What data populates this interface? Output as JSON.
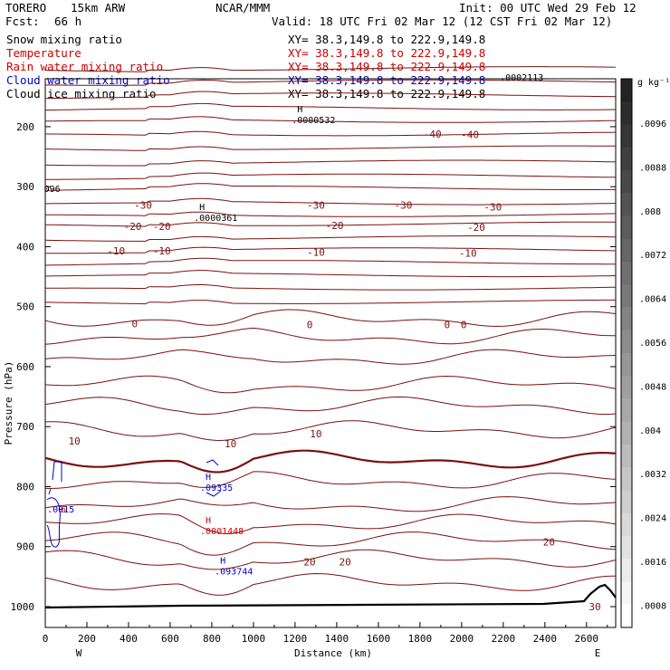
{
  "header": {
    "model": "TORERO",
    "resolution": "15km ARW",
    "org": "NCAR/MMM",
    "init": "Init: 00 UTC Wed 29 Feb 12",
    "fcst_label": "Fcst:",
    "fcst_value": "66 h",
    "valid": "Valid: 18 UTC Fri 02 Mar 12 (12 CST Fri 02 Mar 12)"
  },
  "fields": [
    {
      "name": "Snow mixing ratio",
      "xy": "XY=  38.3,149.8 to 222.9,149.8",
      "color": "#000000"
    },
    {
      "name": "Temperature",
      "xy": "XY=  38.3,149.8 to 222.9,149.8",
      "color": "#cc0000"
    },
    {
      "name": "Rain water mixing ratio",
      "xy": "XY=  38.3,149.8 to 222.9,149.8",
      "color": "#cc0000"
    },
    {
      "name": "Cloud water mixing ratio",
      "xy": "XY=  38.3,149.8 to 222.9,149.8",
      "color": "#0000cc"
    },
    {
      "name": "Cloud ice mixing ratio",
      "xy": "XY=  38.3,149.8 to 222.9,149.8",
      "color": "#000000"
    }
  ],
  "chart_data": {
    "type": "contour-cross-section",
    "xlabel": "Distance (km)",
    "ylabel": "Pressure (hPa)",
    "xlim": [
      0,
      2740
    ],
    "ylim": [
      1050,
      100
    ],
    "x_ticks": [
      0,
      200,
      400,
      600,
      800,
      1000,
      1200,
      1400,
      1600,
      1800,
      2000,
      2200,
      2400,
      2600
    ],
    "y_ticks": [
      200,
      300,
      400,
      500,
      600,
      700,
      800,
      900,
      1000
    ],
    "y_tick_labels": [
      "200",
      "300",
      "400",
      "500",
      "600",
      "700",
      "800",
      "900",
      "1000"
    ],
    "x_tick_labels": [
      "0",
      "200",
      "400",
      "600",
      "800",
      "1000",
      "1200",
      "1400",
      "1600",
      "1800",
      "2000",
      "2200",
      "2400",
      "2600"
    ],
    "ends": {
      "left": "W",
      "right": "E"
    },
    "temperature_contours": [
      {
        "value": -50,
        "pressure": 106
      },
      {
        "value": -48,
        "pressure": 128
      },
      {
        "value": -46,
        "pressure": 150
      },
      {
        "value": -44,
        "pressure": 172
      },
      {
        "value": -42,
        "pressure": 193
      },
      {
        "value": -40,
        "pressure": 215
      },
      {
        "value": -38,
        "pressure": 238
      },
      {
        "value": -36,
        "pressure": 262
      },
      {
        "value": -34,
        "pressure": 285
      },
      {
        "value": -32,
        "pressure": 305
      },
      {
        "value": -30,
        "pressure": 330
      },
      {
        "value": -28,
        "pressure": 350
      },
      {
        "value": -26,
        "pressure": 365
      },
      {
        "value": -24,
        "pressure": 388
      },
      {
        "value": -22,
        "pressure": 408
      },
      {
        "value": -20,
        "pressure": 429
      },
      {
        "value": -18,
        "pressure": 450
      },
      {
        "value": -16,
        "pressure": 472
      },
      {
        "value": -14,
        "pressure": 495
      },
      {
        "value": -12,
        "pressure": 520
      },
      {
        "value": -10,
        "pressure": 550
      },
      {
        "value": -8,
        "pressure": 585
      },
      {
        "value": -6,
        "pressure": 630
      },
      {
        "value": -4,
        "pressure": 665
      },
      {
        "value": -2,
        "pressure": 705
      },
      {
        "value": 0,
        "pressure": 755
      },
      {
        "value": 2,
        "pressure": 790
      },
      {
        "value": 4,
        "pressure": 830
      },
      {
        "value": 6,
        "pressure": 860
      },
      {
        "value": 8,
        "pressure": 890
      },
      {
        "value": 10,
        "pressure": 920
      },
      {
        "value": 12,
        "pressure": 960
      }
    ],
    "contour_labels": [
      {
        "text": "-40",
        "x": 1860,
        "p": 212
      },
      {
        "text": "-40",
        "x": 2040,
        "p": 213
      },
      {
        "text": "-30",
        "x": 470,
        "p": 331
      },
      {
        "text": "-30",
        "x": 1300,
        "p": 331
      },
      {
        "text": "-30",
        "x": 1720,
        "p": 331
      },
      {
        "text": "-30",
        "x": 2150,
        "p": 334
      },
      {
        "text": "-20",
        "x": 420,
        "p": 366
      },
      {
        "text": "-20",
        "x": 560,
        "p": 366
      },
      {
        "text": "-20",
        "x": 1390,
        "p": 365
      },
      {
        "text": "-20",
        "x": 2070,
        "p": 368
      },
      {
        "text": "-10",
        "x": 340,
        "p": 407
      },
      {
        "text": "-10",
        "x": 560,
        "p": 407
      },
      {
        "text": "-10",
        "x": 1300,
        "p": 409
      },
      {
        "text": "-10",
        "x": 2030,
        "p": 411
      },
      {
        "text": "0",
        "x": 430,
        "p": 528
      },
      {
        "text": "0",
        "x": 1270,
        "p": 530
      },
      {
        "text": "0",
        "x": 1930,
        "p": 530
      },
      {
        "text": "0",
        "x": 2010,
        "p": 530
      },
      {
        "text": "10",
        "x": 140,
        "p": 724
      },
      {
        "text": "10",
        "x": 890,
        "p": 728
      },
      {
        "text": "10",
        "x": 1300,
        "p": 712
      },
      {
        "text": "20",
        "x": 1270,
        "p": 925
      },
      {
        "text": "20",
        "x": 1440,
        "p": 925
      },
      {
        "text": "20",
        "x": 2420,
        "p": 892
      },
      {
        "text": "30",
        "x": 2640,
        "p": 1000
      }
    ],
    "extrema_labels": [
      {
        "mark": "H",
        "value": ".0000532",
        "x": 1210,
        "p": 185,
        "color": "#000000"
      },
      {
        "mark": "H",
        "value": ".0000361",
        "x": 740,
        "p": 348,
        "color": "#000000"
      },
      {
        "mark": "H",
        "value": ".09335",
        "x": 770,
        "p": 798,
        "color": "#0000cc"
      },
      {
        "mark": "H",
        "value": ".0001448",
        "x": 770,
        "p": 870,
        "color": "#cc0000"
      },
      {
        "mark": "H",
        "value": ".093744",
        "x": 840,
        "p": 937,
        "color": "#0000cc"
      },
      {
        "mark": "",
        "value": ".0002113",
        "x": 2210,
        "p": 114,
        "color": "#000000"
      },
      {
        "mark": "",
        "value": "096",
        "x": 20,
        "p": 300,
        "color": "#000000"
      },
      {
        "mark": "",
        "value": ".0015",
        "x": 35,
        "p": 834,
        "color": "#0000cc"
      },
      {
        "mark": "",
        "value": "6",
        "x": 100,
        "p": 834,
        "color": "#cc0000"
      }
    ],
    "colorbar": {
      "unit": "g kg⁻¹",
      "labels": [
        ".0096",
        ".0088",
        ".008",
        ".0072",
        ".0064",
        ".0056",
        ".0048",
        ".004",
        ".0032",
        ".0024",
        ".0016",
        ".0008"
      ]
    }
  }
}
